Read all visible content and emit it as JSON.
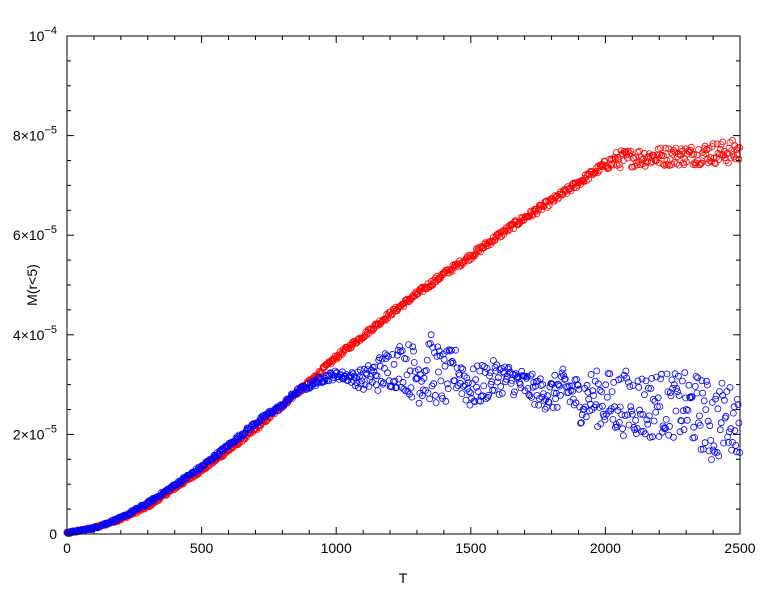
{
  "chart_data": {
    "type": "scatter",
    "title": "",
    "xlabel": "T",
    "ylabel": "M(r<5)",
    "xlim": [
      0,
      2500
    ],
    "ylim": [
      0,
      0.0001
    ],
    "grid": false,
    "x_ticks": [
      {
        "value": 0,
        "label": "0"
      },
      {
        "value": 500,
        "label": "500"
      },
      {
        "value": 1000,
        "label": "1000"
      },
      {
        "value": 1500,
        "label": "1500"
      },
      {
        "value": 2000,
        "label": "2000"
      },
      {
        "value": 2500,
        "label": "2500"
      }
    ],
    "y_ticks": [
      {
        "value": 0,
        "label": "0",
        "mantissa": "",
        "exponent": ""
      },
      {
        "value": 2e-05,
        "label": "2×10−5",
        "mantissa": "2×10",
        "exponent": "−5"
      },
      {
        "value": 4e-05,
        "label": "4×10−5",
        "mantissa": "4×10",
        "exponent": "−5"
      },
      {
        "value": 6e-05,
        "label": "6×10−5",
        "mantissa": "6×10",
        "exponent": "−5"
      },
      {
        "value": 8e-05,
        "label": "8×10−5",
        "mantissa": "8×10",
        "exponent": "−5"
      },
      {
        "value": 0.0001,
        "label": "10−4",
        "mantissa": "10",
        "exponent": "−4"
      }
    ],
    "series": [
      {
        "color": "#ff0000",
        "marker": "open-circle",
        "points": [
          [
            0,
            2e-07
          ],
          [
            100,
            1.2e-06
          ],
          [
            200,
            3e-06
          ],
          [
            300,
            5.5e-06
          ],
          [
            400,
            9.2e-06
          ],
          [
            500,
            1.28e-05
          ],
          [
            600,
            1.68e-05
          ],
          [
            700,
            2.1e-05
          ],
          [
            800,
            2.58e-05
          ],
          [
            900,
            3.05e-05
          ],
          [
            1000,
            3.55e-05
          ],
          [
            1100,
            3.98e-05
          ],
          [
            1200,
            4.42e-05
          ],
          [
            1300,
            4.82e-05
          ],
          [
            1400,
            5.22e-05
          ],
          [
            1500,
            5.58e-05
          ],
          [
            1600,
            5.98e-05
          ],
          [
            1700,
            6.35e-05
          ],
          [
            1800,
            6.68e-05
          ],
          [
            1900,
            7.05e-05
          ],
          [
            2000,
            7.42e-05
          ],
          [
            2050,
            7.52e-05
          ],
          [
            2100,
            7.55e-05
          ],
          [
            2200,
            7.58e-05
          ],
          [
            2300,
            7.6e-05
          ],
          [
            2400,
            7.65e-05
          ],
          [
            2500,
            7.68e-05
          ]
        ],
        "band": [
          [
            0,
            2e-07
          ],
          [
            1990,
            8e-07
          ],
          [
            2040,
            1.8e-06
          ],
          [
            2300,
            2e-06
          ],
          [
            2500,
            2.5e-06
          ]
        ]
      },
      {
        "color": "#0000ff",
        "marker": "open-circle",
        "points": [
          [
            0,
            2e-07
          ],
          [
            100,
            1.2e-06
          ],
          [
            200,
            3.2e-06
          ],
          [
            300,
            6.2e-06
          ],
          [
            400,
            9.8e-06
          ],
          [
            500,
            1.35e-05
          ],
          [
            600,
            1.78e-05
          ],
          [
            700,
            2.22e-05
          ],
          [
            750,
            2.42e-05
          ],
          [
            800,
            2.58e-05
          ],
          [
            850,
            2.85e-05
          ],
          [
            900,
            2.98e-05
          ],
          [
            950,
            3.12e-05
          ],
          [
            1000,
            3.2e-05
          ],
          [
            1050,
            3.15e-05
          ],
          [
            1100,
            3.1e-05
          ],
          [
            1150,
            3.2e-05
          ],
          [
            1200,
            3.35e-05
          ],
          [
            1250,
            3.4e-05
          ],
          [
            1300,
            3.2e-05
          ],
          [
            1350,
            3.35e-05
          ],
          [
            1400,
            3.1e-05
          ],
          [
            1450,
            3.3e-05
          ],
          [
            1500,
            2.9e-05
          ],
          [
            1550,
            3.05e-05
          ],
          [
            1600,
            3.15e-05
          ],
          [
            1650,
            3.1e-05
          ],
          [
            1700,
            3e-05
          ],
          [
            1750,
            2.85e-05
          ],
          [
            1800,
            2.8e-05
          ],
          [
            1850,
            2.95e-05
          ],
          [
            1900,
            2.7e-05
          ],
          [
            1950,
            2.75e-05
          ],
          [
            2000,
            2.68e-05
          ],
          [
            2050,
            2.62e-05
          ],
          [
            2100,
            2.65e-05
          ],
          [
            2150,
            2.55e-05
          ],
          [
            2200,
            2.62e-05
          ],
          [
            2250,
            2.58e-05
          ],
          [
            2300,
            2.55e-05
          ],
          [
            2350,
            2.45e-05
          ],
          [
            2400,
            2.2e-05
          ],
          [
            2450,
            2.4e-05
          ],
          [
            2500,
            2.18e-05
          ]
        ],
        "band": [
          [
            0,
            2e-07
          ],
          [
            850,
            5e-07
          ],
          [
            950,
            8e-07
          ],
          [
            1050,
            1e-06
          ],
          [
            1150,
            3.5e-06
          ],
          [
            1250,
            5e-06
          ],
          [
            1350,
            7e-06
          ],
          [
            1450,
            4.5e-06
          ],
          [
            1550,
            4e-06
          ],
          [
            1650,
            3e-06
          ],
          [
            1750,
            3e-06
          ],
          [
            1850,
            4e-06
          ],
          [
            1950,
            5.5e-06
          ],
          [
            2050,
            6.5e-06
          ],
          [
            2150,
            7e-06
          ],
          [
            2250,
            6.5e-06
          ],
          [
            2350,
            7.5e-06
          ],
          [
            2400,
            8.5e-06
          ],
          [
            2500,
            5.5e-06
          ]
        ]
      }
    ]
  }
}
